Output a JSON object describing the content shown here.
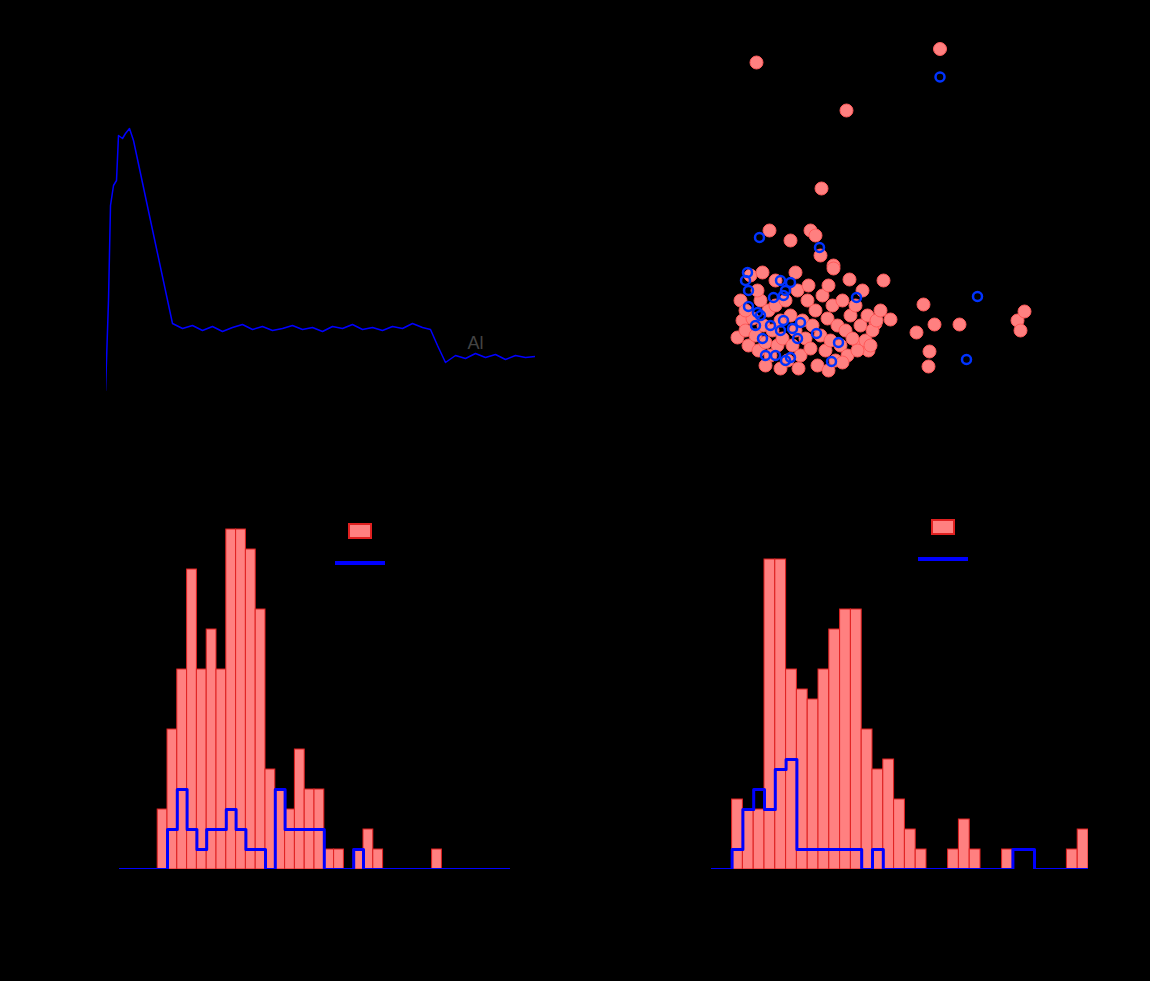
{
  "chart_data": [
    {
      "type": "line",
      "tick_labels": false,
      "xlim": [
        0,
        430
      ],
      "ylim": [
        0,
        300
      ],
      "x": [
        0,
        3,
        5,
        8,
        11,
        13,
        17,
        20,
        24,
        28,
        45,
        67,
        77,
        87,
        97,
        107,
        117,
        127,
        137,
        147,
        157,
        167,
        177,
        187,
        197,
        207,
        217,
        227,
        237,
        247,
        257,
        267,
        277,
        287,
        297,
        307,
        317,
        325,
        332,
        340,
        350,
        360,
        370,
        380,
        390,
        400,
        410,
        420,
        430
      ],
      "values": [
        10,
        100,
        195,
        215,
        220,
        265,
        262,
        267,
        272,
        260,
        180,
        77,
        72,
        75,
        70,
        74,
        69,
        73,
        76,
        71,
        74,
        70,
        72,
        75,
        71,
        73,
        69,
        74,
        72,
        76,
        71,
        73,
        70,
        74,
        72,
        77,
        73,
        71,
        55,
        38,
        45,
        42,
        47,
        43,
        46,
        41,
        45,
        43,
        44
      ],
      "color": "#0000ff",
      "annotations": [
        {
          "text": "Al",
          "x": 370,
          "y": 57
        }
      ]
    },
    {
      "type": "scatter",
      "tick_labels": false,
      "legend": "top-right",
      "xlim": [
        0,
        400
      ],
      "ylim": [
        0,
        370
      ],
      "series": [
        {
          "color": "#ff8080",
          "marker": "filled_circle",
          "points": [
            [
              56,
              338
            ],
            [
              146,
              290
            ],
            [
              121,
              212
            ],
            [
              69,
              170
            ],
            [
              90,
              160
            ],
            [
              110,
              170
            ],
            [
              115,
              165
            ],
            [
              120,
              145
            ],
            [
              133,
              135
            ],
            [
              149,
              121
            ],
            [
              183,
              120
            ],
            [
              223,
              96
            ],
            [
              259,
              76
            ],
            [
              234,
              76
            ],
            [
              216,
              68
            ],
            [
              229,
              49
            ],
            [
              228,
              34
            ],
            [
              317,
              80
            ],
            [
              320,
              70
            ],
            [
              324,
              89
            ],
            [
              190,
              81
            ],
            [
              175,
              77
            ],
            [
              168,
              50
            ],
            [
              158,
              56
            ],
            [
              37,
              63
            ],
            [
              42,
              80
            ],
            [
              45,
              70
            ],
            [
              48,
              55
            ],
            [
              52,
              82
            ],
            [
              55,
              65
            ],
            [
              58,
              50
            ],
            [
              60,
              100
            ],
            [
              63,
              75
            ],
            [
              65,
              58
            ],
            [
              68,
              90
            ],
            [
              70,
              45
            ],
            [
              72,
              70
            ],
            [
              75,
              95
            ],
            [
              77,
              55
            ],
            [
              80,
              80
            ],
            [
              82,
              62
            ],
            [
              85,
              100
            ],
            [
              87,
              40
            ],
            [
              90,
              85
            ],
            [
              92,
              55
            ],
            [
              95,
              70
            ],
            [
              97,
              110
            ],
            [
              100,
              45
            ],
            [
              102,
              80
            ],
            [
              105,
              62
            ],
            [
              107,
              100
            ],
            [
              110,
              52
            ],
            [
              112,
              75
            ],
            [
              115,
              90
            ],
            [
              117,
              35
            ],
            [
              120,
              65
            ],
            [
              122,
              105
            ],
            [
              125,
              50
            ],
            [
              127,
              82
            ],
            [
              130,
              60
            ],
            [
              132,
              95
            ],
            [
              135,
              40
            ],
            [
              137,
              75
            ],
            [
              140,
              55
            ],
            [
              142,
              100
            ],
            [
              145,
              70
            ],
            [
              147,
              45
            ],
            [
              150,
              85
            ],
            [
              152,
              62
            ],
            [
              155,
              95
            ],
            [
              157,
              50
            ],
            [
              160,
              75
            ],
            [
              162,
              110
            ],
            [
              165,
              60
            ],
            [
              167,
              85
            ],
            [
              170,
              55
            ],
            [
              172,
              70
            ],
            [
              176,
              80
            ],
            [
              180,
              90
            ],
            [
              50,
              125
            ],
            [
              62,
              128
            ],
            [
              75,
              120
            ],
            [
              95,
              128
            ],
            [
              108,
              115
            ],
            [
              128,
              115
            ],
            [
              133,
              132
            ],
            [
              65,
              35
            ],
            [
              80,
              32
            ],
            [
              98,
              32
            ],
            [
              128,
              30
            ],
            [
              142,
              38
            ],
            [
              40,
              100
            ],
            [
              45,
              90
            ],
            [
              57,
              110
            ]
          ]
        },
        {
          "color": "#0033ff",
          "marker": "open_circle",
          "points": [
            [
              59,
              163
            ],
            [
              119,
              153
            ],
            [
              47,
              128
            ],
            [
              45,
              120
            ],
            [
              48,
              110
            ],
            [
              80,
              120
            ],
            [
              90,
              118
            ],
            [
              85,
              110
            ],
            [
              73,
              103
            ],
            [
              83,
              105
            ],
            [
              156,
              103
            ],
            [
              277,
              104
            ],
            [
              48,
              94
            ],
            [
              60,
              85
            ],
            [
              70,
              75
            ],
            [
              83,
              80
            ],
            [
              100,
              78
            ],
            [
              55,
              75
            ],
            [
              62,
              62
            ],
            [
              80,
              70
            ],
            [
              92,
              72
            ],
            [
              97,
              62
            ],
            [
              116,
              67
            ],
            [
              138,
              58
            ],
            [
              65,
              45
            ],
            [
              75,
              45
            ],
            [
              85,
              40
            ],
            [
              90,
              43
            ],
            [
              131,
              39
            ],
            [
              266,
              41
            ],
            [
              57,
              88
            ]
          ]
        }
      ]
    },
    {
      "type": "histogram",
      "tick_labels": false,
      "legend": "top-right",
      "xlim": [
        0,
        40
      ],
      "ylim": [
        0,
        18
      ],
      "bins": [
        0,
        1,
        2,
        3,
        4,
        5,
        6,
        7,
        8,
        9,
        10,
        11,
        12,
        13,
        14,
        15,
        16,
        17,
        18,
        19,
        20,
        21,
        22,
        23,
        24,
        25,
        26,
        27,
        28,
        29,
        30,
        31,
        32,
        33,
        34,
        35,
        36,
        37,
        38,
        39,
        40
      ],
      "series": [
        {
          "type": "bar",
          "color": "#ff8080",
          "values": [
            0,
            0,
            0,
            0,
            3,
            7,
            10,
            15,
            10,
            12,
            10,
            17,
            17,
            16,
            13,
            5,
            4,
            3,
            6,
            4,
            4,
            1,
            1,
            0,
            1,
            2,
            1,
            0,
            0,
            0,
            0,
            0,
            1,
            0,
            0,
            0,
            0,
            0,
            0,
            0
          ]
        },
        {
          "type": "step",
          "color": "#0000ff",
          "values": [
            0,
            0,
            0,
            0,
            0,
            2,
            4,
            2,
            1,
            2,
            2,
            3,
            2,
            1,
            1,
            0,
            4,
            2,
            2,
            2,
            2,
            0,
            0,
            0,
            1,
            0,
            0,
            0,
            0,
            0,
            0,
            0,
            0,
            0,
            0,
            0,
            0,
            0,
            0,
            0
          ]
        }
      ]
    },
    {
      "type": "histogram",
      "tick_labels": false,
      "legend": "top-right",
      "xlim": [
        0,
        35
      ],
      "ylim": [
        0,
        18
      ],
      "bins": [
        0,
        1,
        2,
        3,
        4,
        5,
        6,
        7,
        8,
        9,
        10,
        11,
        12,
        13,
        14,
        15,
        16,
        17,
        18,
        19,
        20,
        21,
        22,
        23,
        24,
        25,
        26,
        27,
        28,
        29,
        30,
        31,
        32,
        33,
        34,
        35
      ],
      "series": [
        {
          "type": "bar",
          "color": "#ff8080",
          "values": [
            0,
            0,
            3.5,
            3,
            3,
            15.5,
            15.5,
            10,
            9,
            8.5,
            10,
            12,
            13,
            13,
            7,
            5,
            5.5,
            3.5,
            2,
            1,
            0,
            0,
            1,
            2.5,
            1,
            0,
            0,
            1,
            0,
            0,
            0,
            0,
            0,
            1,
            2
          ]
        },
        {
          "type": "step",
          "color": "#0000ff",
          "values": [
            0,
            0,
            1,
            3,
            4,
            3,
            5,
            5.5,
            1,
            1,
            1,
            1,
            1,
            1,
            0,
            1,
            0,
            0,
            0,
            0,
            0,
            0,
            0,
            0,
            0,
            0,
            0,
            0,
            1,
            1,
            0,
            0,
            0,
            0,
            0
          ]
        }
      ]
    }
  ]
}
